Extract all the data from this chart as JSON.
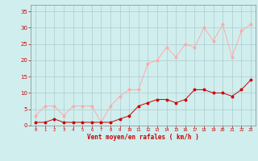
{
  "x": [
    0,
    1,
    2,
    3,
    4,
    5,
    6,
    7,
    8,
    9,
    10,
    11,
    12,
    13,
    14,
    15,
    16,
    17,
    18,
    19,
    20,
    21,
    22,
    23
  ],
  "vent_moyen": [
    1,
    1,
    2,
    1,
    1,
    1,
    1,
    1,
    1,
    2,
    3,
    6,
    7,
    8,
    8,
    7,
    8,
    11,
    11,
    10,
    10,
    9,
    11,
    14
  ],
  "rafales": [
    3,
    6,
    6,
    3,
    6,
    6,
    6,
    1,
    6,
    9,
    11,
    11,
    19,
    20,
    24,
    21,
    25,
    24,
    30,
    26,
    31,
    21,
    29,
    31
  ],
  "line_color_moyen": "#cc0000",
  "line_color_rafales": "#ffaaaa",
  "marker_color_moyen": "#cc0000",
  "marker_color_rafales": "#ffaaaa",
  "bg_color": "#d0eeee",
  "grid_color": "#b0cccc",
  "xlabel": "Vent moyen/en rafales ( km/h )",
  "xlabel_color": "#cc0000",
  "tick_color": "#cc0000",
  "spine_color": "#888888",
  "ylim": [
    0,
    37
  ],
  "xlim": [
    -0.5,
    23.5
  ],
  "yticks": [
    0,
    5,
    10,
    15,
    20,
    25,
    30,
    35
  ],
  "xticks": [
    0,
    1,
    2,
    3,
    4,
    5,
    6,
    7,
    8,
    9,
    10,
    11,
    12,
    13,
    14,
    15,
    16,
    17,
    18,
    19,
    20,
    21,
    22,
    23
  ]
}
